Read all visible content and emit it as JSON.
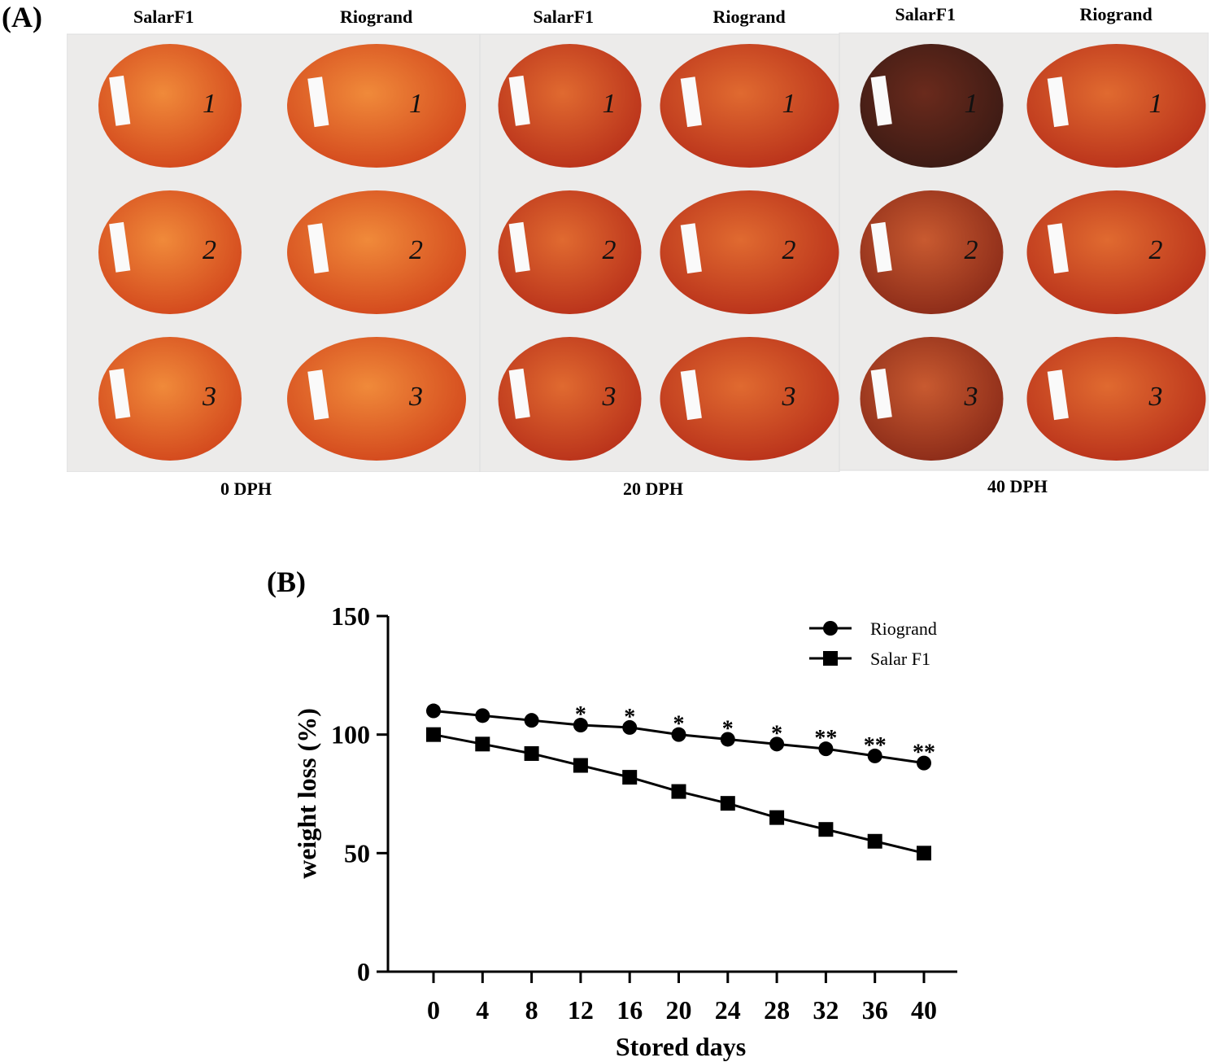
{
  "panel_a": {
    "label": "(A)",
    "groups": [
      {
        "dph": "0 DPH",
        "columns": [
          "SalarF1",
          "Riogrand"
        ],
        "numbers": [
          "1",
          "2",
          "3"
        ]
      },
      {
        "dph": "20 DPH",
        "columns": [
          "SalarF1",
          "Riogrand"
        ],
        "numbers": [
          "1",
          "2",
          "3"
        ]
      },
      {
        "dph": "40 DPH",
        "columns": [
          "SalarF1",
          "Riogrand"
        ],
        "numbers": [
          "1",
          "2",
          "3"
        ]
      }
    ]
  },
  "panel_b": {
    "label": "(B)"
  },
  "chart_data": {
    "type": "line",
    "xlabel": "Stored days",
    "ylabel": "weight loss (%)",
    "x": [
      0,
      4,
      8,
      12,
      16,
      20,
      24,
      28,
      32,
      36,
      40
    ],
    "xticks": [
      "0",
      "4",
      "8",
      "12",
      "16",
      "20",
      "24",
      "28",
      "32",
      "36",
      "40"
    ],
    "yticks": [
      "0",
      "50",
      "100",
      "150"
    ],
    "ylim": [
      0,
      150
    ],
    "xlim": [
      0,
      40
    ],
    "grid": false,
    "legend_position": "top-right",
    "series": [
      {
        "name": "Riogrand",
        "marker": "circle",
        "color": "#000000",
        "values": [
          110,
          108,
          106,
          104,
          103,
          100,
          98,
          96,
          94,
          91,
          88
        ]
      },
      {
        "name": "Salar F1",
        "marker": "square",
        "color": "#000000",
        "values": [
          100,
          96,
          92,
          87,
          82,
          76,
          71,
          65,
          60,
          55,
          50
        ]
      }
    ],
    "annotations": [
      "",
      "",
      "",
      "*",
      "*",
      "*",
      "*",
      "*",
      "**",
      "**",
      "**"
    ]
  }
}
